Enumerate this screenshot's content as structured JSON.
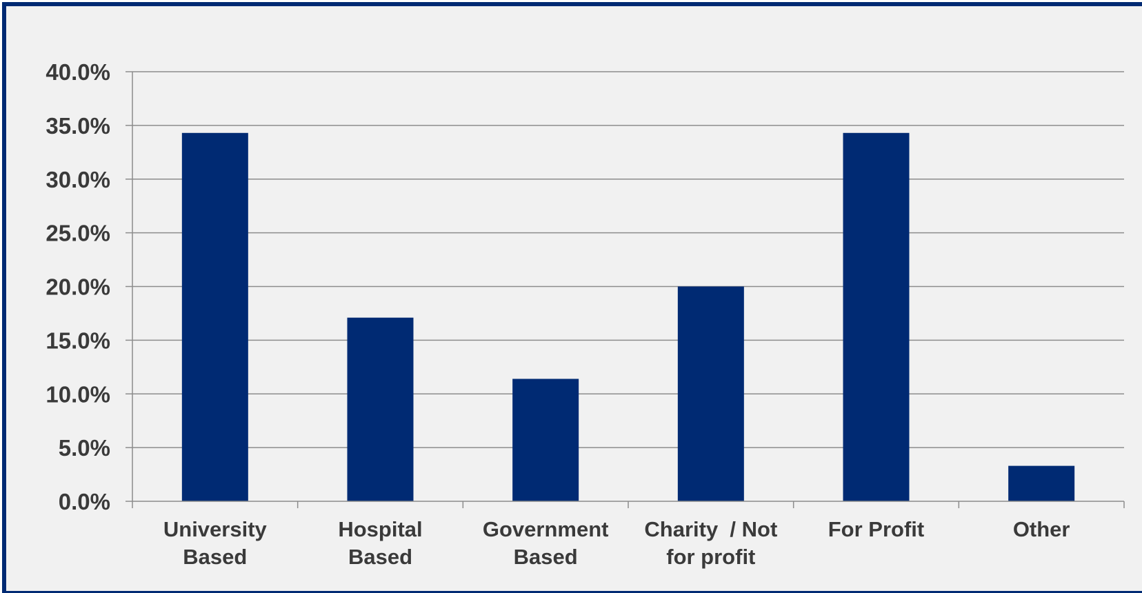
{
  "chart_data": {
    "type": "bar",
    "categories": [
      [
        "University",
        "Based"
      ],
      [
        "Hospital",
        "Based"
      ],
      [
        "Government",
        "Based"
      ],
      [
        "Charity  / Not",
        "for profit"
      ],
      [
        "For Profit"
      ],
      [
        "Other"
      ]
    ],
    "values": [
      34.3,
      17.1,
      11.4,
      20.0,
      34.3,
      3.3
    ],
    "y_tick_labels": [
      "0.0%",
      "5.0%",
      "10.0%",
      "15.0%",
      "20.0%",
      "25.0%",
      "30.0%",
      "35.0%",
      "40.0%"
    ],
    "ylim": [
      0,
      40
    ],
    "y_tick_step": 5,
    "grid": true,
    "colors": {
      "bar": "#002a73",
      "frame": "#002a73",
      "background": "#f1f1f1",
      "gridline": "#8c8c8c",
      "text": "#3a3a3a"
    }
  }
}
